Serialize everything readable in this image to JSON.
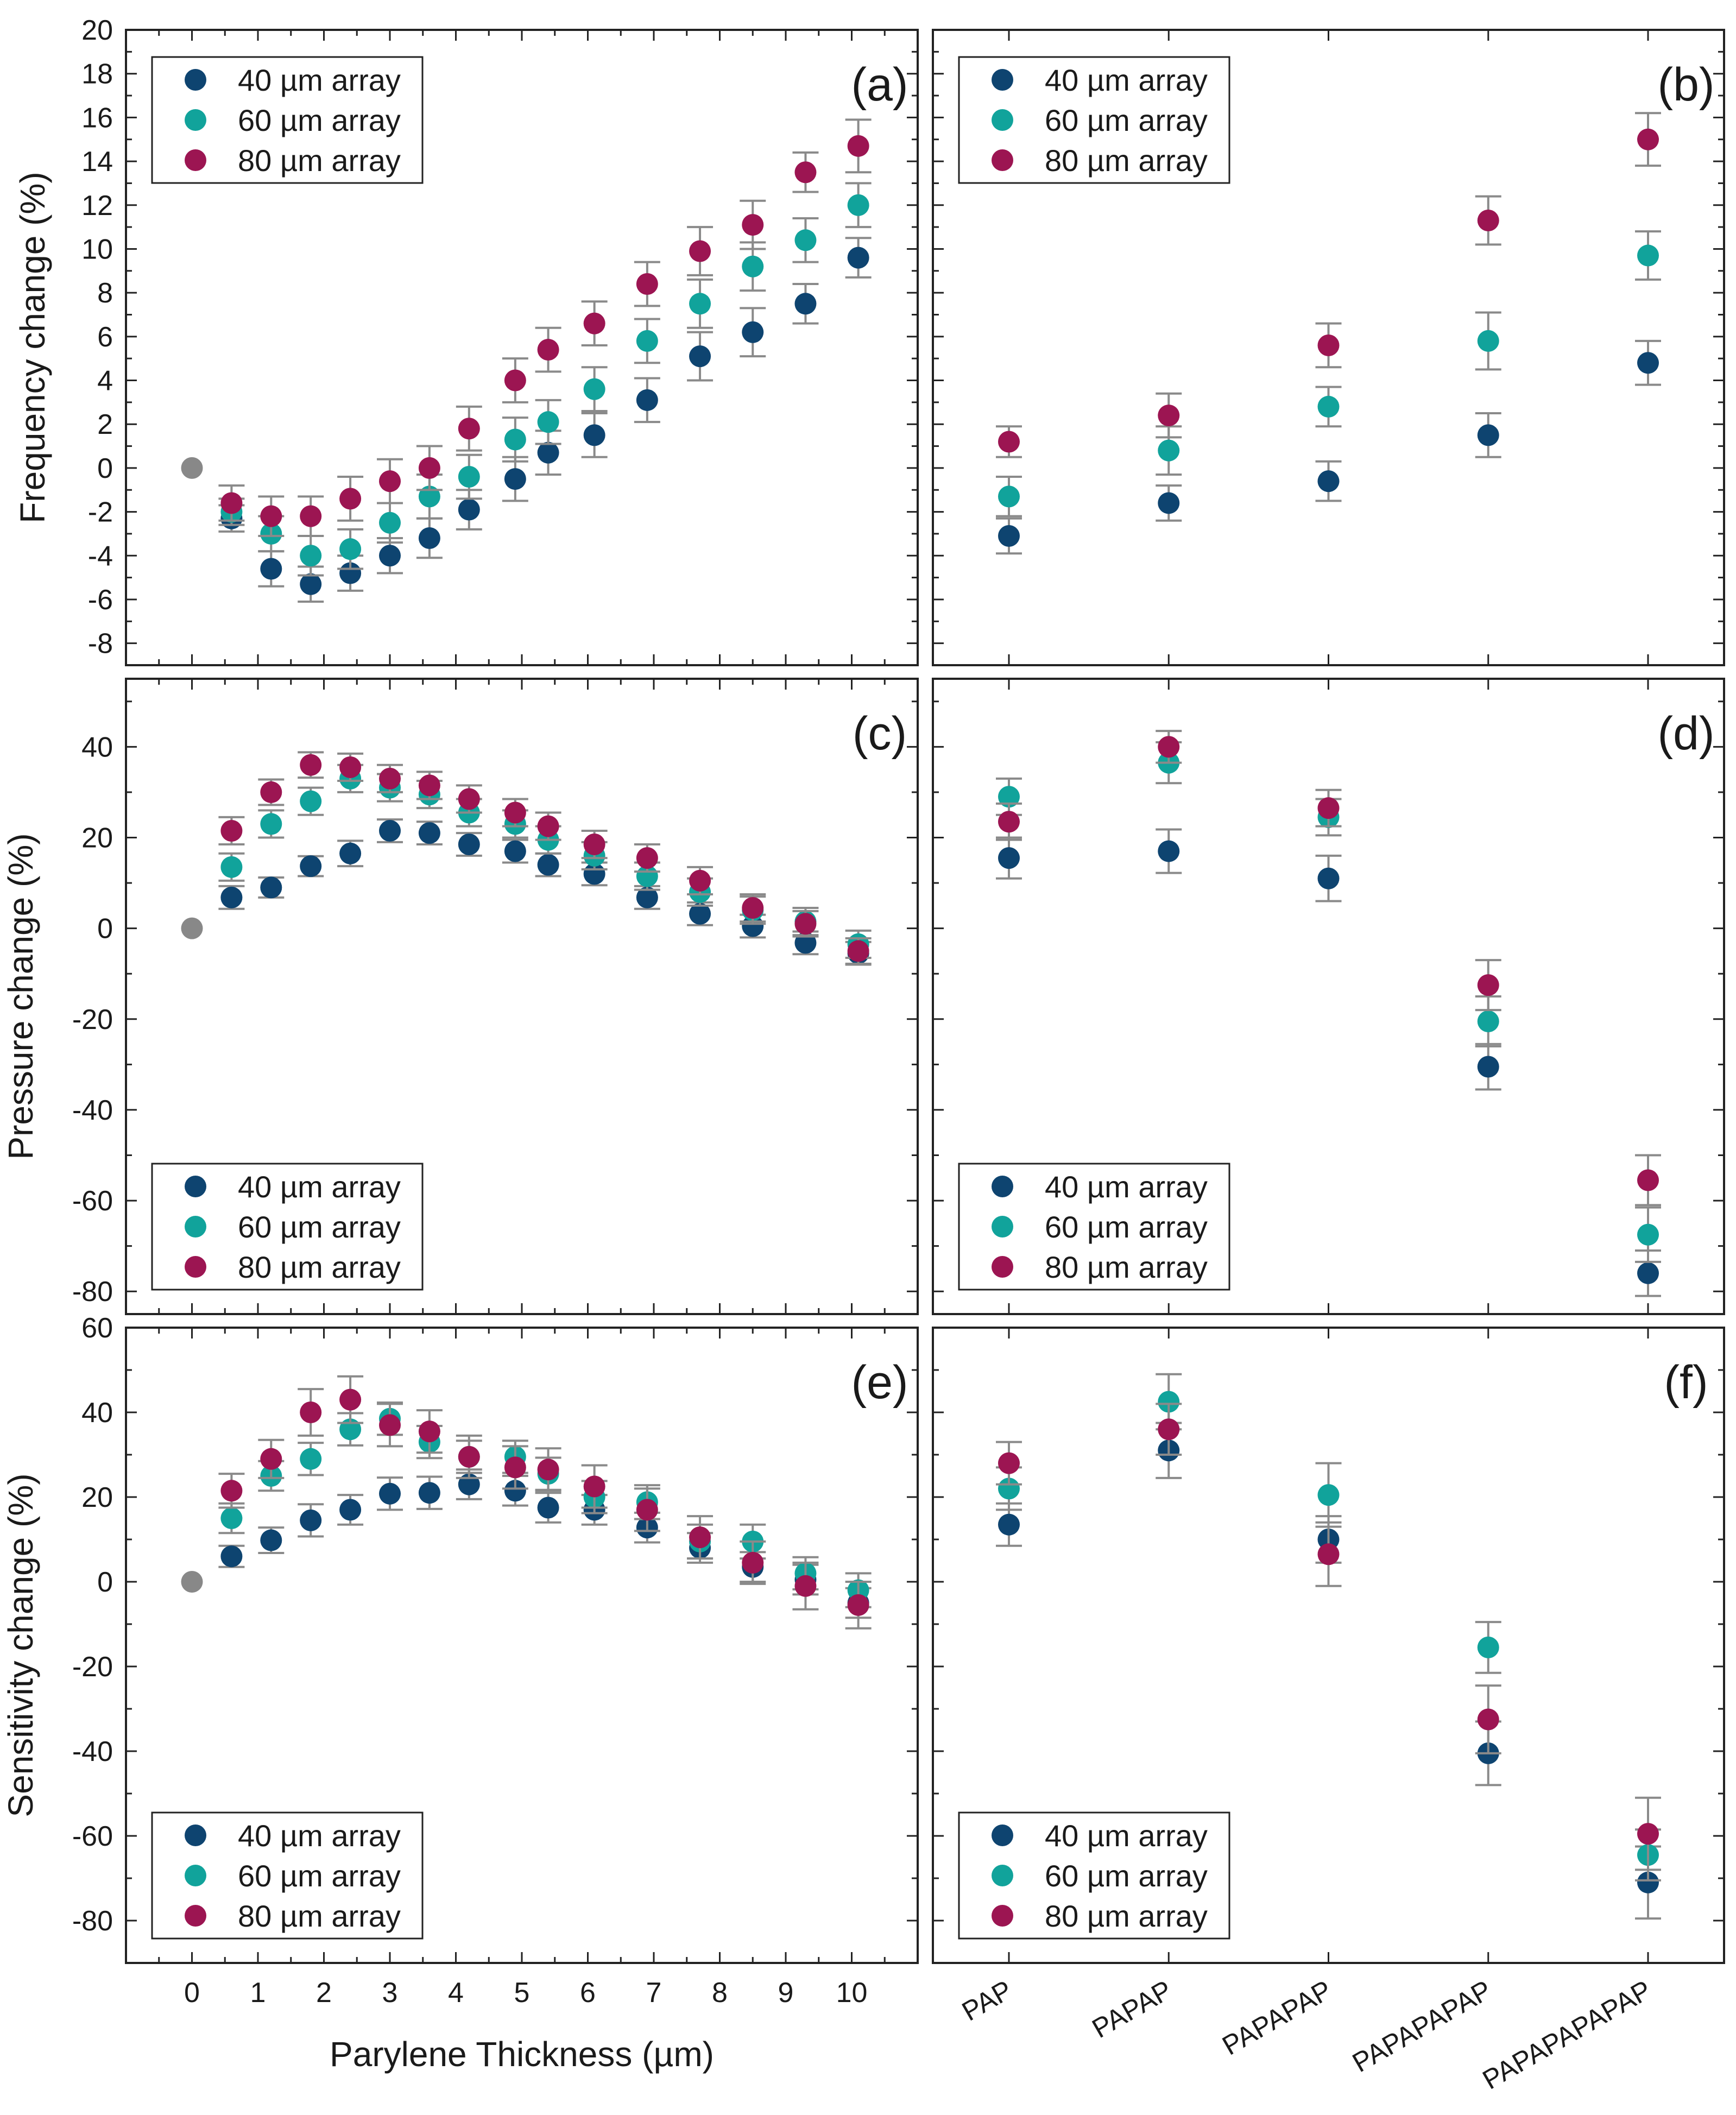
{
  "colors": {
    "40um": "#0e4470",
    "60um": "#11a39b",
    "80um": "#9c1552",
    "baseline": "#888888",
    "errorbar": "#8a8a8a",
    "axis": "#222222"
  },
  "legend": {
    "items": [
      {
        "key": "40um",
        "label": "40 µm array"
      },
      {
        "key": "60um",
        "label": "60 µm array"
      },
      {
        "key": "80um",
        "label": "80 µm array"
      }
    ]
  },
  "xaxis_left": {
    "label": "Parylene Thickness (µm)",
    "ticks": [
      "0",
      "1",
      "2",
      "3",
      "4",
      "5",
      "6",
      "7",
      "8",
      "9",
      "10"
    ]
  },
  "chart_data": [
    {
      "panel": "(a)",
      "type": "scatter",
      "xlabel": "",
      "ylabel": "Frequency change (%)",
      "x": [
        0.6,
        1.2,
        1.8,
        2.4,
        3.0,
        3.6,
        4.2,
        4.9,
        5.4,
        6.1,
        6.9,
        7.7,
        8.5,
        9.3,
        10.1
      ],
      "xlim": [
        -1,
        11
      ],
      "ylim": [
        -9,
        20
      ],
      "yticks": [
        -8,
        -6,
        -4,
        -2,
        0,
        2,
        4,
        6,
        8,
        10,
        12,
        14,
        16,
        18,
        20
      ],
      "baseline": {
        "x": 0,
        "y": 0
      },
      "series": [
        {
          "key": "40um",
          "name": "40 µm array",
          "values": [
            -2.3,
            -4.6,
            -5.3,
            -4.8,
            -4.0,
            -3.2,
            -1.9,
            -0.5,
            0.7,
            1.5,
            3.1,
            5.1,
            6.2,
            7.5,
            9.6
          ],
          "errors": [
            0.6,
            0.8,
            0.8,
            0.8,
            0.8,
            0.9,
            0.9,
            1.0,
            1.0,
            1.0,
            1.0,
            1.1,
            1.1,
            0.9,
            0.9
          ]
        },
        {
          "key": "60um",
          "name": "60 µm array",
          "values": [
            -2.0,
            -3.0,
            -4.0,
            -3.7,
            -2.5,
            -1.3,
            -0.4,
            1.3,
            2.1,
            3.6,
            5.8,
            7.5,
            9.2,
            10.4,
            12.0
          ],
          "errors": [
            0.6,
            0.8,
            0.9,
            0.9,
            0.9,
            1.0,
            1.0,
            1.0,
            1.0,
            1.0,
            1.0,
            1.1,
            1.1,
            1.0,
            1.0
          ]
        },
        {
          "key": "80um",
          "name": "80 µm array",
          "values": [
            -1.6,
            -2.2,
            -2.2,
            -1.4,
            -0.6,
            0.0,
            1.8,
            4.0,
            5.4,
            6.6,
            8.4,
            9.9,
            11.1,
            13.5,
            14.7
          ],
          "errors": [
            0.8,
            0.9,
            0.9,
            1.0,
            1.0,
            1.0,
            1.0,
            1.0,
            1.0,
            1.0,
            1.0,
            1.1,
            1.1,
            0.9,
            1.2
          ]
        }
      ],
      "legend_position": "top-left"
    },
    {
      "panel": "(b)",
      "type": "scatter",
      "xlabel": "",
      "ylabel": "",
      "categories": [
        "PAP",
        "PAPAP",
        "PAPAPAP",
        "PAPAPAPAP",
        "PAPAPAPAPAP"
      ],
      "ylim": [
        -9,
        20
      ],
      "series": [
        {
          "key": "40um",
          "name": "40 µm array",
          "values": [
            -3.1,
            -1.6,
            -0.6,
            1.5,
            4.8
          ],
          "errors": [
            0.8,
            0.8,
            0.9,
            1.0,
            1.0
          ]
        },
        {
          "key": "60um",
          "name": "60 µm array",
          "values": [
            -1.3,
            0.8,
            2.8,
            5.8,
            9.7
          ],
          "errors": [
            0.9,
            1.1,
            0.9,
            1.3,
            1.1
          ]
        },
        {
          "key": "80um",
          "name": "80 µm array",
          "values": [
            1.2,
            2.4,
            5.6,
            11.3,
            15.0
          ],
          "errors": [
            0.7,
            1.0,
            1.0,
            1.1,
            1.2
          ]
        }
      ],
      "legend_position": "top-left"
    },
    {
      "panel": "(c)",
      "type": "scatter",
      "xlabel": "",
      "ylabel": "Pressure change (%)",
      "x": [
        0.6,
        1.2,
        1.8,
        2.4,
        3.0,
        3.6,
        4.2,
        4.9,
        5.4,
        6.1,
        6.9,
        7.7,
        8.5,
        9.3,
        10.1
      ],
      "xlim": [
        -1,
        11
      ],
      "ylim": [
        -85,
        55
      ],
      "yticks": [
        -80,
        -60,
        -40,
        -20,
        0,
        20,
        40
      ],
      "baseline": {
        "x": 0,
        "y": 0
      },
      "series": [
        {
          "key": "40um",
          "name": "40 µm array",
          "values": [
            6.8,
            9.0,
            13.7,
            16.5,
            21.5,
            21.0,
            18.5,
            17.0,
            14.0,
            12.0,
            6.8,
            3.2,
            0.5,
            -3.2,
            -5.5
          ],
          "errors": [
            2.5,
            2.2,
            2.2,
            2.8,
            2.5,
            2.5,
            2.5,
            2.5,
            2.5,
            2.5,
            2.5,
            2.5,
            2.5,
            2.5,
            2.5
          ]
        },
        {
          "key": "60um",
          "name": "60 µm array",
          "values": [
            13.5,
            23.0,
            28.0,
            33.0,
            31.0,
            29.5,
            25.5,
            23.0,
            19.5,
            16.0,
            11.5,
            8.0,
            4.0,
            1.5,
            -3.5
          ],
          "errors": [
            3.0,
            3.0,
            3.0,
            3.0,
            3.0,
            3.0,
            3.0,
            3.0,
            3.0,
            3.0,
            3.0,
            3.0,
            3.0,
            3.0,
            3.0
          ]
        },
        {
          "key": "80um",
          "name": "80 µm array",
          "values": [
            21.5,
            30.0,
            36.0,
            35.5,
            33.0,
            31.5,
            28.5,
            25.5,
            22.5,
            18.5,
            15.5,
            10.5,
            4.5,
            1.0,
            -5.0
          ],
          "errors": [
            3.0,
            2.8,
            2.8,
            3.0,
            3.0,
            3.0,
            3.0,
            3.0,
            3.0,
            3.0,
            3.0,
            3.0,
            3.0,
            2.8,
            2.8
          ]
        }
      ],
      "legend_position": "bottom-left"
    },
    {
      "panel": "(d)",
      "type": "scatter",
      "xlabel": "",
      "ylabel": "",
      "categories": [
        "PAP",
        "PAPAP",
        "PAPAPAP",
        "PAPAPAPAP",
        "PAPAPAPAPAP"
      ],
      "ylim": [
        -85,
        55
      ],
      "series": [
        {
          "key": "40um",
          "name": "40 µm array",
          "values": [
            15.5,
            17.0,
            11.0,
            -30.5,
            -76.0
          ],
          "errors": [
            4.5,
            4.8,
            5.0,
            5.0,
            5.0
          ]
        },
        {
          "key": "60um",
          "name": "60 µm array",
          "values": [
            29.0,
            36.5,
            24.5,
            -20.5,
            -67.5
          ],
          "errors": [
            4.0,
            4.5,
            4.0,
            5.5,
            6.0
          ]
        },
        {
          "key": "80um",
          "name": "80 µm array",
          "values": [
            23.5,
            40.0,
            26.5,
            -12.5,
            -55.5
          ],
          "errors": [
            4.0,
            3.5,
            4.0,
            5.5,
            5.5
          ]
        }
      ],
      "legend_position": "bottom-left"
    },
    {
      "panel": "(e)",
      "type": "scatter",
      "xlabel": "Parylene Thickness (µm)",
      "ylabel": "Sensitivity change (%)",
      "x": [
        0.6,
        1.2,
        1.8,
        2.4,
        3.0,
        3.6,
        4.2,
        4.9,
        5.4,
        6.1,
        6.9,
        7.7,
        8.5,
        9.3,
        10.1
      ],
      "xlim": [
        -1,
        11
      ],
      "ylim": [
        -90,
        60
      ],
      "yticks": [
        -80,
        -60,
        -40,
        -20,
        0,
        20,
        40,
        60
      ],
      "baseline": {
        "x": 0,
        "y": 0
      },
      "series": [
        {
          "key": "40um",
          "name": "40 µm array",
          "values": [
            6.0,
            9.8,
            14.5,
            17.0,
            20.8,
            21.0,
            23.0,
            21.5,
            17.5,
            17.0,
            12.8,
            8.0,
            3.5,
            0.5,
            -5.0
          ],
          "errors": [
            2.5,
            3.0,
            3.8,
            3.5,
            3.8,
            3.8,
            3.5,
            3.5,
            3.5,
            3.5,
            3.5,
            3.5,
            3.5,
            3.5,
            3.5
          ]
        },
        {
          "key": "60um",
          "name": "60 µm array",
          "values": [
            15.0,
            25.0,
            29.0,
            36.0,
            38.5,
            33.0,
            29.5,
            29.5,
            25.5,
            20.0,
            18.8,
            9.5,
            9.5,
            2.0,
            -2.0
          ],
          "errors": [
            3.5,
            3.5,
            3.8,
            3.8,
            3.8,
            3.8,
            3.8,
            3.8,
            3.8,
            3.8,
            4.0,
            4.0,
            4.0,
            3.8,
            4.0
          ]
        },
        {
          "key": "80um",
          "name": "80 µm array",
          "values": [
            21.5,
            29.0,
            40.0,
            43.0,
            37.0,
            35.5,
            29.5,
            27.0,
            26.5,
            22.5,
            17.0,
            10.5,
            4.5,
            -1.0,
            -5.5
          ],
          "errors": [
            4.0,
            4.5,
            5.5,
            5.5,
            5.0,
            5.0,
            5.0,
            5.0,
            5.0,
            5.0,
            5.0,
            5.0,
            5.0,
            5.5,
            5.5
          ]
        }
      ],
      "legend_position": "bottom-left"
    },
    {
      "panel": "(f)",
      "type": "scatter",
      "xlabel": "",
      "ylabel": "",
      "categories": [
        "PAP",
        "PAPAP",
        "PAPAPAP",
        "PAPAPAPAP",
        "PAPAPAPAPAP"
      ],
      "ylim": [
        -90,
        60
      ],
      "series": [
        {
          "key": "40um",
          "name": "40 µm array",
          "values": [
            13.5,
            31.0,
            10.0,
            -40.5,
            -71.0
          ],
          "errors": [
            5.0,
            6.5,
            5.5,
            7.5,
            8.5
          ]
        },
        {
          "key": "60um",
          "name": "60 µm array",
          "values": [
            22.0,
            42.5,
            20.5,
            -15.5,
            -64.5
          ],
          "errors": [
            5.0,
            6.5,
            7.5,
            6.0,
            6.0
          ]
        },
        {
          "key": "80um",
          "name": "80 µm array",
          "values": [
            28.0,
            36.0,
            6.5,
            -32.5,
            -59.5
          ],
          "errors": [
            5.0,
            6.0,
            7.5,
            8.0,
            8.5
          ]
        }
      ],
      "legend_position": "bottom-left"
    }
  ]
}
